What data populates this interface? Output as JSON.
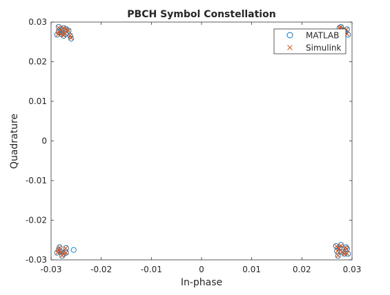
{
  "chart_data": {
    "type": "scatter",
    "title": "PBCH Symbol Constellation",
    "xlabel": "In-phase",
    "ylabel": "Quadrature",
    "xlim": [
      -0.03,
      0.03
    ],
    "ylim": [
      -0.03,
      0.03
    ],
    "xticks": [
      -0.03,
      -0.02,
      -0.01,
      0,
      0.01,
      0.02,
      0.03
    ],
    "xtick_labels": [
      "-0.03",
      "-0.02",
      "-0.01",
      "0",
      "0.01",
      "0.02",
      "0.03"
    ],
    "yticks": [
      -0.03,
      -0.02,
      -0.01,
      0,
      0.01,
      0.02,
      0.03
    ],
    "ytick_labels": [
      "-0.03",
      "-0.02",
      "-0.01",
      "0",
      "0.01",
      "0.02",
      "0.03"
    ],
    "grid": false,
    "legend_position": "top-right",
    "series": [
      {
        "name": "MATLAB",
        "marker": "circle",
        "color": "#0072BD",
        "points": [
          [
            -0.028,
            0.028
          ],
          [
            -0.0275,
            0.0285
          ],
          [
            -0.0285,
            0.0275
          ],
          [
            -0.027,
            0.027
          ],
          [
            -0.028,
            0.027
          ],
          [
            -0.027,
            0.0282
          ],
          [
            -0.0265,
            0.0278
          ],
          [
            -0.0285,
            0.0288
          ],
          [
            -0.026,
            0.0258
          ],
          [
            -0.0262,
            0.0265
          ],
          [
            -0.0288,
            0.0268
          ],
          [
            -0.0275,
            0.0265
          ],
          [
            0.028,
            0.028
          ],
          [
            0.0275,
            0.0285
          ],
          [
            0.0285,
            0.0275
          ],
          [
            0.027,
            0.0272
          ],
          [
            0.029,
            0.0282
          ],
          [
            0.0282,
            0.027
          ],
          [
            0.0278,
            0.0288
          ],
          [
            0.0292,
            0.0268
          ],
          [
            -0.028,
            -0.028
          ],
          [
            -0.0285,
            -0.0275
          ],
          [
            -0.0275,
            -0.0285
          ],
          [
            -0.027,
            -0.027
          ],
          [
            -0.0283,
            -0.0268
          ],
          [
            -0.027,
            -0.0282
          ],
          [
            -0.0278,
            -0.029
          ],
          [
            -0.0288,
            -0.0282
          ],
          [
            -0.0255,
            -0.0275
          ],
          [
            0.028,
            -0.028
          ],
          [
            0.0275,
            -0.027
          ],
          [
            0.0285,
            -0.0285
          ],
          [
            0.027,
            -0.0278
          ],
          [
            0.029,
            -0.0272
          ],
          [
            0.0278,
            -0.0262
          ],
          [
            0.0272,
            -0.029
          ],
          [
            0.0288,
            -0.0268
          ],
          [
            0.0292,
            -0.0285
          ],
          [
            0.0268,
            -0.0265
          ]
        ]
      },
      {
        "name": "Simulink",
        "marker": "x",
        "color": "#D95319",
        "points": [
          [
            -0.028,
            0.028
          ],
          [
            -0.0275,
            0.0285
          ],
          [
            -0.0285,
            0.0275
          ],
          [
            -0.0272,
            0.0272
          ],
          [
            -0.028,
            0.027
          ],
          [
            -0.027,
            0.0282
          ],
          [
            -0.0265,
            0.0278
          ],
          [
            -0.0285,
            0.0286
          ],
          [
            -0.026,
            0.026
          ],
          [
            -0.0262,
            0.0266
          ],
          [
            -0.0286,
            0.0269
          ],
          [
            -0.0275,
            0.0266
          ],
          [
            0.028,
            0.028
          ],
          [
            0.0275,
            0.0285
          ],
          [
            0.0285,
            0.0275
          ],
          [
            0.0271,
            0.0273
          ],
          [
            0.0289,
            0.0281
          ],
          [
            0.0282,
            0.0271
          ],
          [
            0.0278,
            0.0287
          ],
          [
            0.029,
            0.027
          ],
          [
            -0.028,
            -0.028
          ],
          [
            -0.0285,
            -0.0275
          ],
          [
            -0.0275,
            -0.0285
          ],
          [
            -0.0271,
            -0.0271
          ],
          [
            -0.0283,
            -0.0269
          ],
          [
            -0.027,
            -0.0282
          ],
          [
            -0.0278,
            -0.0289
          ],
          [
            -0.0287,
            -0.0282
          ],
          [
            0.028,
            -0.028
          ],
          [
            0.0275,
            -0.0271
          ],
          [
            0.0285,
            -0.0285
          ],
          [
            0.0271,
            -0.0278
          ],
          [
            0.0289,
            -0.0273
          ],
          [
            0.0278,
            -0.0264
          ],
          [
            0.0272,
            -0.0289
          ],
          [
            0.0287,
            -0.0269
          ],
          [
            0.029,
            -0.0284
          ],
          [
            0.0269,
            -0.0266
          ]
        ]
      }
    ]
  }
}
